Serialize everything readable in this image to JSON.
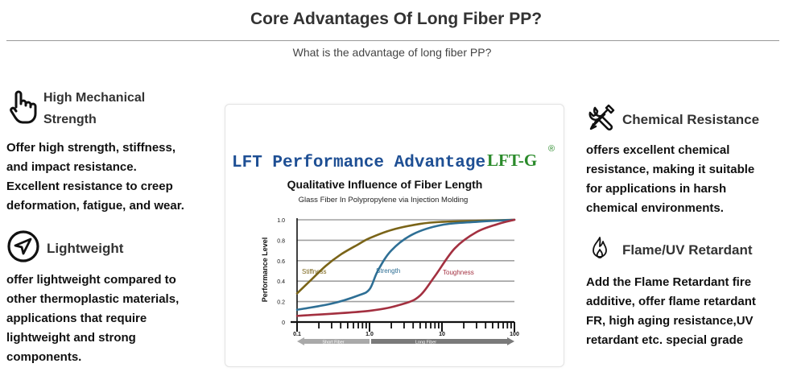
{
  "page": {
    "title": "Core Advantages Of Long Fiber PP?",
    "subtitle": "What is the advantage of long fiber PP?"
  },
  "features": {
    "mechanical": {
      "title_line1": "High Mechanical",
      "title_line2": "Strength",
      "body": [
        "Offer high strength, stiffness,",
        "and impact resistance.",
        "Excellent resistance to creep",
        "deformation, fatigue, and wear."
      ]
    },
    "lightweight": {
      "title": "Lightweight",
      "body": [
        "offer lightweight compared to",
        "other thermoplastic materials,",
        "applications that require",
        "lightweight and strong",
        "components."
      ]
    },
    "chemical": {
      "title": "Chemical Resistance",
      "body": [
        "offers excellent chemical",
        "resistance, making it suitable",
        "for applications in harsh",
        "chemical environments."
      ]
    },
    "flame": {
      "title": "Flame/UV Retardant",
      "body": [
        "Add the Flame Retardant fire",
        "additive, offer flame retardant",
        "FR, high aging resistance,UV",
        "retardant etc. special grade"
      ]
    }
  },
  "icons": {
    "mechanical": "hand-pointer-icon",
    "lightweight": "navigation-arrow-icon",
    "chemical": "tools-wrench-screwdriver-icon",
    "flame": "flame-icon"
  },
  "graphic": {
    "brand_title": "LFT Performance Advantage",
    "logo": "LFT-G",
    "logo_mark": "®"
  },
  "chart_data": {
    "type": "line",
    "title": "Qualitative Influence of Fiber Length",
    "subtitle": "Glass Fiber In Polypropylene via Injection Molding",
    "ylabel": "Performance Level",
    "xlabel": "",
    "x_scale": "log",
    "xlim": [
      0.1,
      100
    ],
    "ylim": [
      0,
      1.0
    ],
    "x_ticks": [
      "0.1",
      "1.0",
      "10",
      "100"
    ],
    "y_ticks": [
      "0",
      "0.2",
      "0.4",
      "0.6",
      "0.8",
      "1.0"
    ],
    "grid": true,
    "region_labels": [
      "Short Fiber",
      "Long Fiber"
    ],
    "series": [
      {
        "name": "Stiffness",
        "color": "#7a6418",
        "x": [
          0.1,
          0.15,
          0.25,
          0.4,
          0.7,
          1.0,
          2.0,
          5.0,
          10,
          30,
          100
        ],
        "y": [
          0.28,
          0.4,
          0.55,
          0.66,
          0.76,
          0.82,
          0.9,
          0.96,
          0.98,
          0.99,
          1.0
        ]
      },
      {
        "name": "Strength",
        "color": "#2e6f95",
        "x": [
          0.1,
          0.3,
          0.7,
          1.0,
          1.3,
          2.0,
          4.0,
          10,
          30,
          100
        ],
        "y": [
          0.12,
          0.18,
          0.26,
          0.32,
          0.5,
          0.7,
          0.86,
          0.95,
          0.98,
          1.0
        ]
      },
      {
        "name": "Toughness",
        "color": "#a33040",
        "x": [
          0.1,
          1.0,
          3.0,
          5.0,
          8.0,
          15,
          30,
          60,
          100
        ],
        "y": [
          0.06,
          0.11,
          0.18,
          0.26,
          0.45,
          0.72,
          0.88,
          0.96,
          1.0
        ]
      }
    ]
  },
  "colors": {
    "brand_blue": "#1e4f94",
    "logo_green": "#2a8a2a",
    "grid": "#9a9a9a",
    "text_dark": "#111111"
  }
}
